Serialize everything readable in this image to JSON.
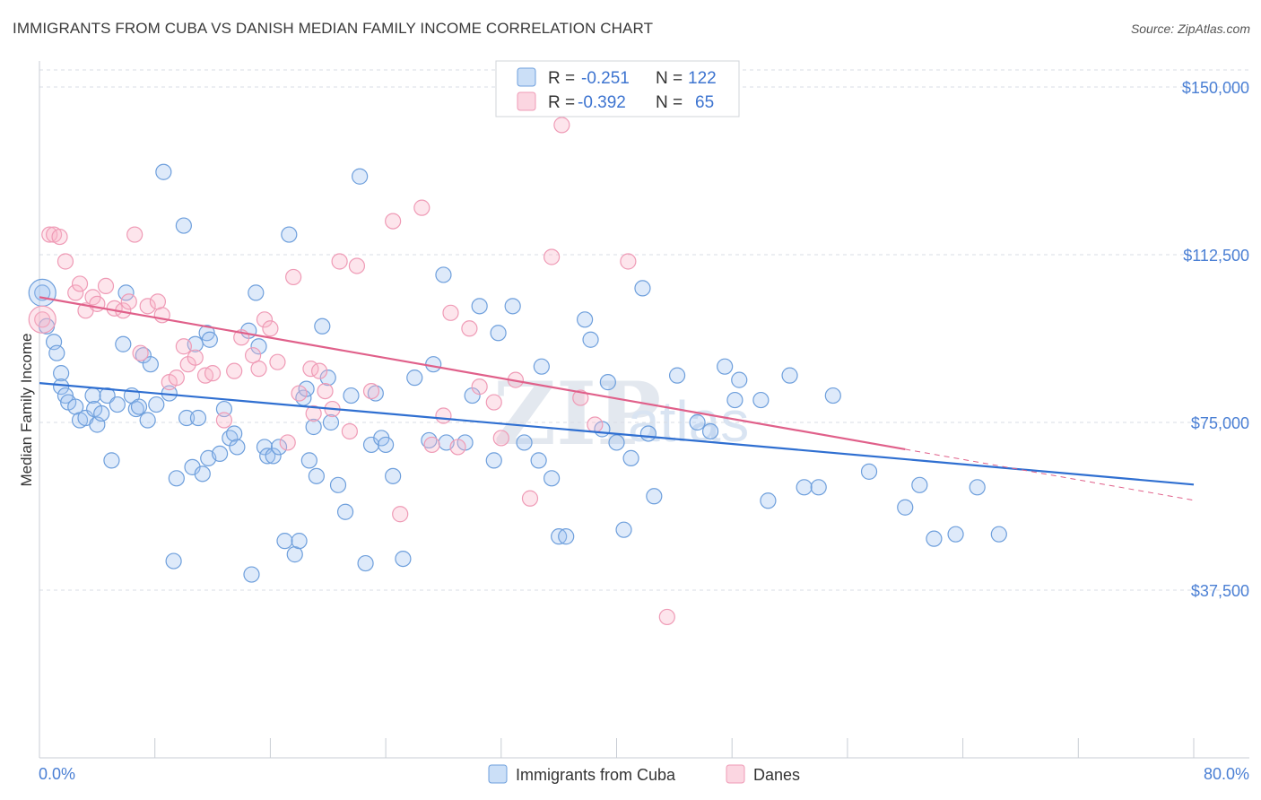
{
  "title": "IMMIGRANTS FROM CUBA VS DANISH MEDIAN FAMILY INCOME CORRELATION CHART",
  "source": "Source: ZipAtlas.com",
  "watermark": {
    "zip": "ZIP",
    "atlas": "atlas"
  },
  "colors": {
    "cuba_fill": "rgba(160,196,240,0.35)",
    "cuba_stroke": "#6e9fdc",
    "cuba_line": "#2f6fd1",
    "danes_fill": "rgba(248,180,200,0.35)",
    "danes_stroke": "#ef9bb6",
    "danes_line": "#e0608a",
    "grid": "#d8dde4",
    "axis_text": "#4a7fd4"
  },
  "legend": {
    "rows": [
      {
        "r_label": "R =",
        "r_value": "-0.251",
        "n_label": "N =",
        "n_value": "122"
      },
      {
        "r_label": "R =",
        "r_value": "-0.392",
        "n_label": "N =",
        "n_value": "65"
      }
    ]
  },
  "chart_data": {
    "type": "scatter",
    "title": "IMMIGRANTS FROM CUBA VS DANISH MEDIAN FAMILY INCOME CORRELATION CHART",
    "xlabel": "",
    "ylabel": "Median Family Income",
    "xlim": [
      0,
      80
    ],
    "ylim": [
      0,
      150000
    ],
    "x_tick_labels": [
      "0.0%",
      "80.0%"
    ],
    "y_ticks": [
      37500,
      75000,
      112500,
      150000
    ],
    "y_tick_labels": [
      "$37,500",
      "$75,000",
      "$112,500",
      "$150,000"
    ],
    "series": [
      {
        "name": "Immigrants from Cuba",
        "r": -0.251,
        "n": 122,
        "trend": {
          "x": [
            0,
            80
          ],
          "y": [
            83800,
            61100
          ]
        },
        "points": [
          [
            0.2,
            104000
          ],
          [
            0.5,
            96500
          ],
          [
            1.0,
            93000
          ],
          [
            1.2,
            90500
          ],
          [
            1.5,
            86000
          ],
          [
            1.5,
            83000
          ],
          [
            1.8,
            81000
          ],
          [
            2.0,
            79500
          ],
          [
            2.5,
            78500
          ],
          [
            2.8,
            75500
          ],
          [
            3.2,
            76000
          ],
          [
            3.7,
            81000
          ],
          [
            3.8,
            78000
          ],
          [
            4.0,
            74500
          ],
          [
            4.3,
            77000
          ],
          [
            4.7,
            81000
          ],
          [
            5.0,
            66500
          ],
          [
            5.4,
            79000
          ],
          [
            5.8,
            92500
          ],
          [
            6.0,
            104000
          ],
          [
            6.4,
            81000
          ],
          [
            6.7,
            78000
          ],
          [
            6.9,
            78500
          ],
          [
            7.2,
            90000
          ],
          [
            7.5,
            75500
          ],
          [
            7.7,
            88000
          ],
          [
            8.1,
            79000
          ],
          [
            8.6,
            131000
          ],
          [
            9.0,
            81500
          ],
          [
            9.3,
            44000
          ],
          [
            9.5,
            62500
          ],
          [
            10.0,
            119000
          ],
          [
            10.2,
            76000
          ],
          [
            10.6,
            65000
          ],
          [
            10.8,
            92500
          ],
          [
            11.0,
            76000
          ],
          [
            11.3,
            63500
          ],
          [
            11.6,
            95000
          ],
          [
            11.7,
            67000
          ],
          [
            11.8,
            93500
          ],
          [
            12.5,
            68000
          ],
          [
            12.8,
            78000
          ],
          [
            13.2,
            71500
          ],
          [
            13.5,
            72500
          ],
          [
            13.7,
            69500
          ],
          [
            14.5,
            95500
          ],
          [
            14.7,
            41000
          ],
          [
            15.0,
            104000
          ],
          [
            15.2,
            92000
          ],
          [
            15.6,
            69500
          ],
          [
            15.8,
            67500
          ],
          [
            16.2,
            67500
          ],
          [
            16.6,
            69500
          ],
          [
            17.0,
            48500
          ],
          [
            17.3,
            117000
          ],
          [
            17.7,
            45500
          ],
          [
            18.0,
            48500
          ],
          [
            18.3,
            80500
          ],
          [
            18.5,
            82500
          ],
          [
            18.7,
            66500
          ],
          [
            19.0,
            74000
          ],
          [
            19.2,
            63000
          ],
          [
            19.6,
            96500
          ],
          [
            20.0,
            85000
          ],
          [
            20.2,
            75000
          ],
          [
            20.7,
            61000
          ],
          [
            21.2,
            55000
          ],
          [
            21.6,
            81000
          ],
          [
            22.2,
            130000
          ],
          [
            22.6,
            43500
          ],
          [
            23.0,
            70000
          ],
          [
            23.3,
            81500
          ],
          [
            23.7,
            71500
          ],
          [
            24.0,
            70000
          ],
          [
            24.5,
            63000
          ],
          [
            25.2,
            44500
          ],
          [
            26.0,
            85000
          ],
          [
            27.0,
            71000
          ],
          [
            27.3,
            88000
          ],
          [
            28.0,
            108000
          ],
          [
            28.2,
            70500
          ],
          [
            29.5,
            70500
          ],
          [
            30.0,
            81000
          ],
          [
            30.5,
            101000
          ],
          [
            31.5,
            66500
          ],
          [
            31.8,
            95000
          ],
          [
            32.8,
            101000
          ],
          [
            33.6,
            70500
          ],
          [
            34.6,
            66500
          ],
          [
            34.8,
            87500
          ],
          [
            35.5,
            62500
          ],
          [
            36.0,
            49500
          ],
          [
            36.5,
            49500
          ],
          [
            37.8,
            98000
          ],
          [
            38.2,
            93500
          ],
          [
            39.0,
            73500
          ],
          [
            39.4,
            84000
          ],
          [
            40.5,
            51000
          ],
          [
            41.0,
            67000
          ],
          [
            41.8,
            105000
          ],
          [
            42.2,
            72500
          ],
          [
            42.6,
            58500
          ],
          [
            44.2,
            85500
          ],
          [
            45.6,
            75000
          ],
          [
            46.5,
            73000
          ],
          [
            47.5,
            87500
          ],
          [
            48.2,
            80000
          ],
          [
            48.5,
            84500
          ],
          [
            50.0,
            80000
          ],
          [
            50.5,
            57500
          ],
          [
            52.0,
            85500
          ],
          [
            53.0,
            60500
          ],
          [
            54.0,
            60500
          ],
          [
            55.0,
            81000
          ],
          [
            57.5,
            64000
          ],
          [
            60.0,
            56000
          ],
          [
            63.5,
            50000
          ],
          [
            65.0,
            60500
          ],
          [
            66.5,
            50000
          ],
          [
            62.0,
            49000
          ],
          [
            61.0,
            61000
          ],
          [
            40.0,
            70500
          ]
        ]
      },
      {
        "name": "Danes",
        "r": -0.392,
        "n": 65,
        "trend": {
          "x": [
            0,
            60
          ],
          "y": [
            103000,
            69000
          ]
        },
        "trend_dashed": {
          "x": [
            60,
            80
          ],
          "y": [
            69000,
            57600
          ]
        },
        "points": [
          [
            0.2,
            98000
          ],
          [
            0.7,
            117000
          ],
          [
            1.0,
            117000
          ],
          [
            1.4,
            116500
          ],
          [
            1.8,
            111000
          ],
          [
            2.5,
            104000
          ],
          [
            2.8,
            106000
          ],
          [
            3.2,
            100000
          ],
          [
            3.7,
            103000
          ],
          [
            4.0,
            101500
          ],
          [
            4.6,
            105500
          ],
          [
            5.2,
            100500
          ],
          [
            5.8,
            100000
          ],
          [
            6.2,
            102000
          ],
          [
            6.6,
            117000
          ],
          [
            7.0,
            90500
          ],
          [
            7.5,
            101000
          ],
          [
            8.2,
            102000
          ],
          [
            8.5,
            99000
          ],
          [
            9.0,
            84000
          ],
          [
            9.5,
            85000
          ],
          [
            10.0,
            92000
          ],
          [
            10.3,
            88000
          ],
          [
            10.8,
            89500
          ],
          [
            11.5,
            85500
          ],
          [
            12.0,
            86000
          ],
          [
            12.8,
            75500
          ],
          [
            13.5,
            86500
          ],
          [
            14.0,
            94000
          ],
          [
            14.8,
            90000
          ],
          [
            15.2,
            87000
          ],
          [
            15.6,
            98000
          ],
          [
            16.0,
            96000
          ],
          [
            16.5,
            88500
          ],
          [
            17.2,
            70500
          ],
          [
            17.6,
            107500
          ],
          [
            18.0,
            81500
          ],
          [
            18.8,
            87000
          ],
          [
            19.0,
            77000
          ],
          [
            19.4,
            86500
          ],
          [
            19.8,
            82000
          ],
          [
            20.3,
            78000
          ],
          [
            20.8,
            111000
          ],
          [
            21.5,
            73000
          ],
          [
            22.0,
            110000
          ],
          [
            23.0,
            82000
          ],
          [
            24.5,
            120000
          ],
          [
            25.0,
            54500
          ],
          [
            26.5,
            123000
          ],
          [
            27.2,
            70000
          ],
          [
            28.0,
            76500
          ],
          [
            28.5,
            99500
          ],
          [
            29.0,
            69500
          ],
          [
            29.8,
            96000
          ],
          [
            30.5,
            83000
          ],
          [
            31.5,
            79500
          ],
          [
            32.0,
            71500
          ],
          [
            33.0,
            84500
          ],
          [
            34.0,
            58000
          ],
          [
            35.5,
            112000
          ],
          [
            36.2,
            141500
          ],
          [
            37.5,
            80500
          ],
          [
            38.5,
            74500
          ],
          [
            40.8,
            111000
          ],
          [
            43.5,
            31500
          ]
        ]
      }
    ]
  },
  "bottom_legend": {
    "items": [
      "Immigrants from Cuba",
      "Danes"
    ]
  }
}
